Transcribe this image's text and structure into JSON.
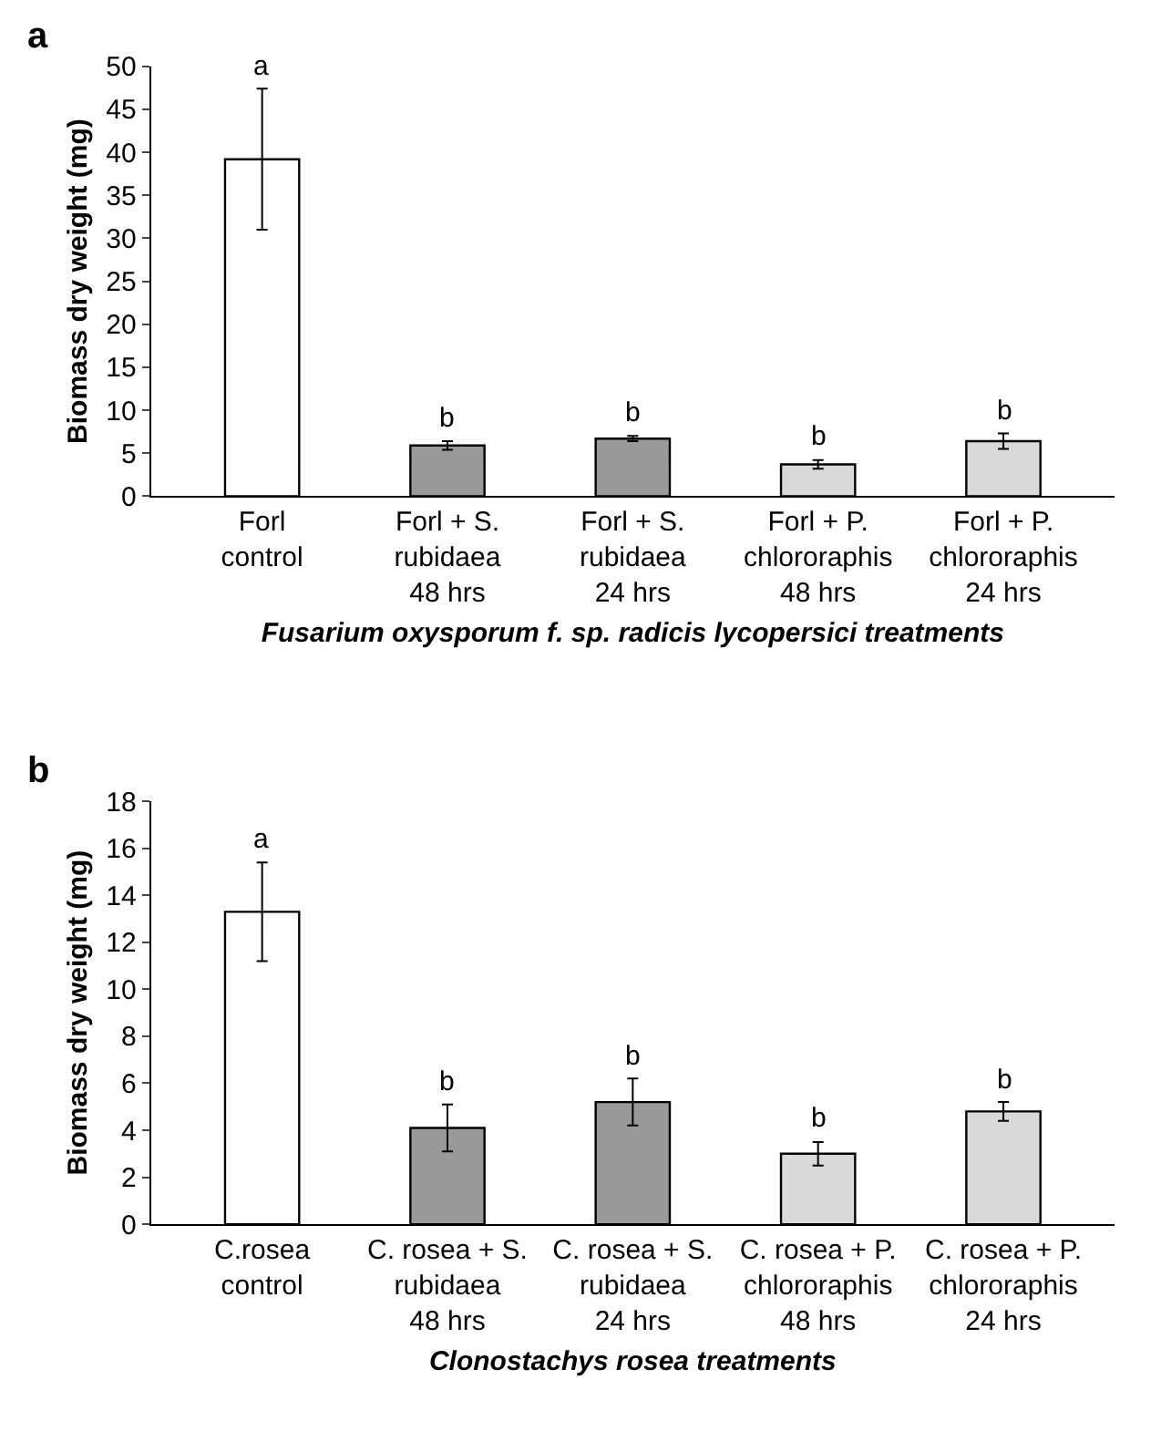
{
  "chart_data": [
    {
      "type": "bar",
      "title": "a",
      "xlabel": "Fusarium oxysporum f. sp. radicis lycopersici treatments",
      "ylabel": "Biomass dry weight (mg)",
      "categories": [
        "Forl\ncontrol",
        "Forl + S.\nrubidaea\n48 hrs",
        "Forl + S.\nrubidaea\n24 hrs",
        "Forl + P.\nchlororaphis\n48 hrs",
        "Forl + P.\nchlororaphis\n24 hrs"
      ],
      "values": [
        39.2,
        5.9,
        6.7,
        3.7,
        6.4
      ],
      "errors": [
        8.2,
        0.5,
        0.3,
        0.5,
        0.9
      ],
      "colors": [
        "#ffffff",
        "#999999",
        "#999999",
        "#d9d9d9",
        "#d9d9d9"
      ],
      "ylim": [
        0,
        50
      ],
      "yticks": [
        0,
        5,
        10,
        15,
        20,
        25,
        30,
        35,
        40,
        45,
        50
      ],
      "annotations": [
        {
          "text": "a",
          "x": "Forl\ncontrol",
          "y": 47.4
        },
        {
          "text": "b",
          "x": "Forl + S.\nrubidaea\n48 hrs",
          "y": 6.4
        },
        {
          "text": "b",
          "x": "Forl + S.\nrubidaea\n24 hrs",
          "y": 7.0
        },
        {
          "text": "b",
          "x": "Forl + P.\nchlororaphis\n48 hrs",
          "y": 4.2
        },
        {
          "text": "b",
          "x": "Forl + P.\nchlororaphis\n24 hrs",
          "y": 7.3
        }
      ]
    },
    {
      "type": "bar",
      "title": "b",
      "xlabel": "Clonostachys rosea treatments",
      "ylabel": "Biomass dry weight (mg)",
      "categories": [
        "C.rosea\ncontrol",
        "C. rosea + S.\nrubidaea\n48 hrs",
        "C. rosea + S.\nrubidaea\n24 hrs",
        "C. rosea + P.\nchlororaphis\n48 hrs",
        "C. rosea + P.\nchlororaphis\n24 hrs"
      ],
      "values": [
        13.3,
        4.1,
        5.2,
        3.0,
        4.8
      ],
      "errors": [
        2.1,
        1.0,
        1.0,
        0.5,
        0.4
      ],
      "colors": [
        "#ffffff",
        "#999999",
        "#999999",
        "#d9d9d9",
        "#d9d9d9"
      ],
      "ylim": [
        0,
        18
      ],
      "yticks": [
        0,
        2,
        4,
        6,
        8,
        10,
        12,
        14,
        16,
        18
      ],
      "annotations": [
        {
          "text": "a",
          "x": "C.rosea\ncontrol",
          "y": 15.4
        },
        {
          "text": "b",
          "x": "C. rosea + S.\nrubidaea\n48 hrs",
          "y": 5.1
        },
        {
          "text": "b",
          "x": "C. rosea + S.\nrubidaea\n24 hrs",
          "y": 6.2
        },
        {
          "text": "b",
          "x": "C. rosea + P.\nchlororaphis\n48 hrs",
          "y": 3.5
        },
        {
          "text": "b",
          "x": "C. rosea + P.\nchlororaphis\n24 hrs",
          "y": 5.2
        }
      ]
    }
  ]
}
